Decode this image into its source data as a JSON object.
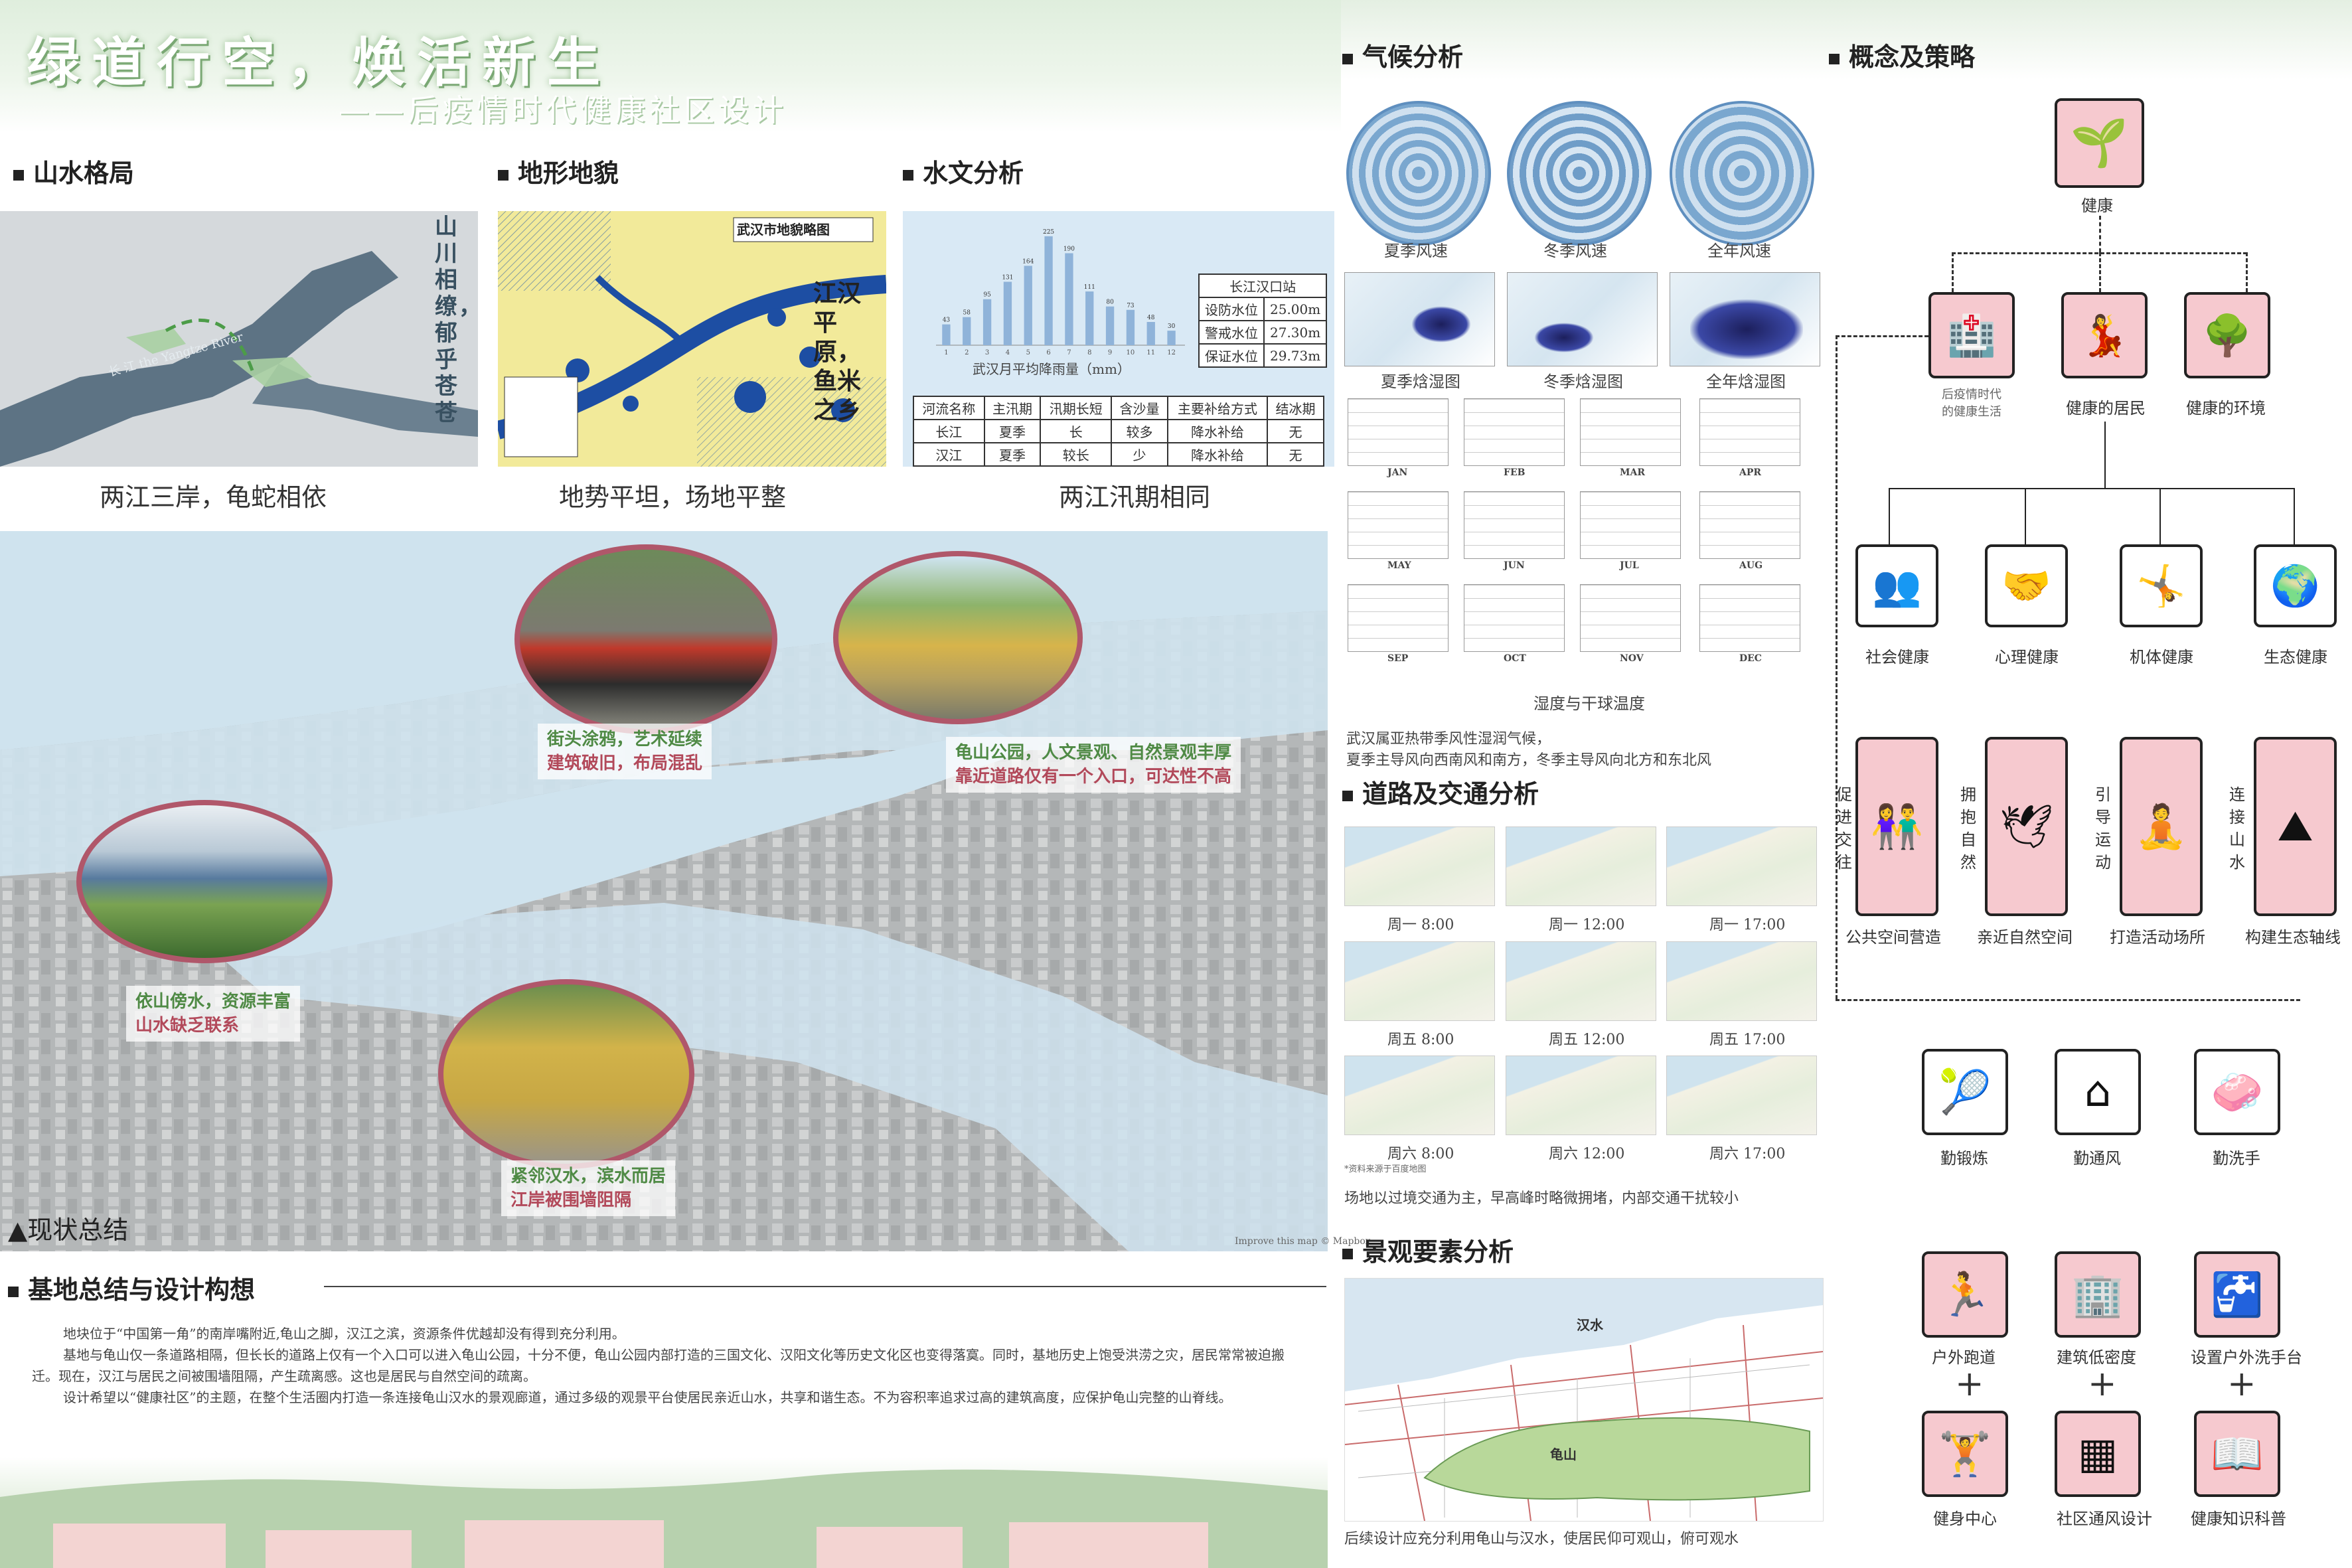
{
  "title": {
    "main": "绿道行空，焕活新生",
    "subtitle": "——后疫情时代健康社区设计"
  },
  "sections": {
    "shanshui": "山水格局",
    "dixing": "地形地貌",
    "shuiwen": "水文分析",
    "qihou": "气候分析",
    "gainian": "概念及策略",
    "daolu": "道路及交通分析",
    "jingguan": "景观要素分析",
    "xianzhuang": "现状总结",
    "jidi": "基地总结与设计构想"
  },
  "captions": {
    "shanshui": "两江三岸，龟蛇相依",
    "dixing": "地势平坦，场地平整",
    "shuiwen": "两江汛期相同"
  },
  "shanshui_map": {
    "vertical_text": "山川相缭，郁乎苍苍",
    "river_label": "长 江   the Yangtze River",
    "river_label2": "the Han River"
  },
  "dixing_map": {
    "title": "武汉市地貌略图",
    "vertical_text": "江汉平原，鱼米之乡"
  },
  "hydro": {
    "chart_title": "武汉月平均降雨量（mm）",
    "station": {
      "title": "长江汉口站",
      "rows": [
        [
          "设防水位",
          "25.00m"
        ],
        [
          "警戒水位",
          "27.30m"
        ],
        [
          "保证水位",
          "29.73m"
        ]
      ]
    },
    "table_header": [
      "河流名称",
      "主汛期",
      "汛期长短",
      "含沙量",
      "主要补给方式",
      "结冰期"
    ],
    "table_rows": [
      [
        "长江",
        "夏季",
        "长",
        "较多",
        "降水补给",
        "无"
      ],
      [
        "汉江",
        "夏季",
        "较长",
        "少",
        "降水补给",
        "无"
      ]
    ]
  },
  "chart_data": {
    "type": "bar",
    "title": "武汉月平均降雨量（mm）",
    "categories": [
      "1",
      "2",
      "3",
      "4",
      "5",
      "6",
      "7",
      "8",
      "9",
      "10",
      "11",
      "12"
    ],
    "values": [
      43,
      58,
      95,
      131,
      164,
      225,
      190,
      111,
      80,
      73,
      48,
      30
    ],
    "ylim": [
      0,
      240
    ]
  },
  "climate": {
    "wind": [
      "夏季风速",
      "冬季风速",
      "全年风速"
    ],
    "psychro": [
      "夏季焓湿图",
      "冬季焓湿图",
      "全年焓湿图"
    ],
    "months": [
      "JAN",
      "FEB",
      "MAR",
      "APR",
      "MAY",
      "JUN",
      "JUL",
      "AUG",
      "SEP",
      "OCT",
      "NOV",
      "DEC"
    ],
    "humidity_caption": "湿度与干球温度",
    "note1": "武汉属亚热带季风性湿润气候，",
    "note2": "夏季主导风向西南风和南方，冬季主导风向北方和东北风"
  },
  "traffic": {
    "times": [
      "周一 8:00",
      "周一 12:00",
      "周一 17:00",
      "周五 8:00",
      "周五 12:00",
      "周五 17:00",
      "周六 8:00",
      "周六 12:00",
      "周六 17:00"
    ],
    "source": "*资料来源于百度地图",
    "note": "场地以过境交通为主，早高峰时略微拥堵，内部交通干扰较小"
  },
  "landscape": {
    "han_label": "汉水",
    "gui_label": "龟山",
    "note": "后续设计应充分利用龟山与汉水，使居民仰可观山，俯可观水"
  },
  "status": {
    "c1a": "街头涂鸦，艺术延续",
    "c1b": "建筑破旧，布局混乱",
    "c2a": "龟山公园，人文景观、自然景观丰厚",
    "c2b": "靠近道路仅有一个入口，可达性不高",
    "c3a": "依山傍水，资源丰富",
    "c3b": "山水缺乏联系",
    "c4a": "紧邻汉水，滨水而居",
    "c4b": "江岸被围墙阻隔",
    "attribution": "Improve this map © Mapbox"
  },
  "summary": {
    "p1": "地块位于“中国第一角”的南岸嘴附近,龟山之脚，汉江之滨，资源条件优越却没有得到充分利用。",
    "p2": "基地与龟山仅一条道路相隔，但长长的道路上仅有一个入口可以进入龟山公园，十分不便，龟山公园内部打造的三国文化、汉阳文化等历史文化区也变得落寞。同时，基地历史上饱受洪涝之灾，居民常常被迫搬迁。现在，汉江与居民之间被围墙阻隔，产生疏离感。这也是居民与自然空间的疏离。",
    "p3": "设计希望以“健康社区”的主题，在整个生活圈内打造一条连接龟山汉水的景观廊道，通过多级的观景平台使居民亲近山水，共享和谐生态。不为容积率追求过高的建筑高度，应保护龟山完整的山脊线。"
  },
  "concept": {
    "root": "健康",
    "level1": [
      "后疫情时代\n的健康生活",
      "健康的居民",
      "健康的环境"
    ],
    "level2": [
      "社会健康",
      "心理健康",
      "机体健康",
      "生态健康"
    ],
    "level3": [
      "公共空间营造",
      "亲近自然空间",
      "打造活动场所",
      "构建生态轴线"
    ],
    "level3_side": [
      "促进交往",
      "拥抱自然",
      "引导运动",
      "连接山水"
    ],
    "level4": [
      "勤锻炼",
      "勤通风",
      "勤洗手"
    ],
    "level5a": [
      "户外跑道",
      "建筑低密度",
      "设置户外洗手台"
    ],
    "level5b": [
      "健身中心",
      "社区通风设计",
      "健康知识科普"
    ],
    "plus": "+"
  },
  "colors": {
    "accent_pink": "#f6c9cf",
    "green_text": "#4f8a45",
    "red_text": "#b2495a",
    "water": "#cfe3ee"
  },
  "icons": [
    "plant-hands-icon",
    "hospital-icon",
    "dancing-icon",
    "tree-hands-icon",
    "faces-icon",
    "heart-hands-icon",
    "stretch-icon",
    "globe-hand-icon",
    "couple-icon",
    "bird-icon",
    "yoga-icon",
    "mountain-arrow-icon",
    "tennis-icon",
    "house-icon",
    "handwash-icon",
    "runner-icon",
    "building-icon",
    "washstand-icon",
    "gym-icon",
    "server-icon",
    "reading-icon"
  ]
}
